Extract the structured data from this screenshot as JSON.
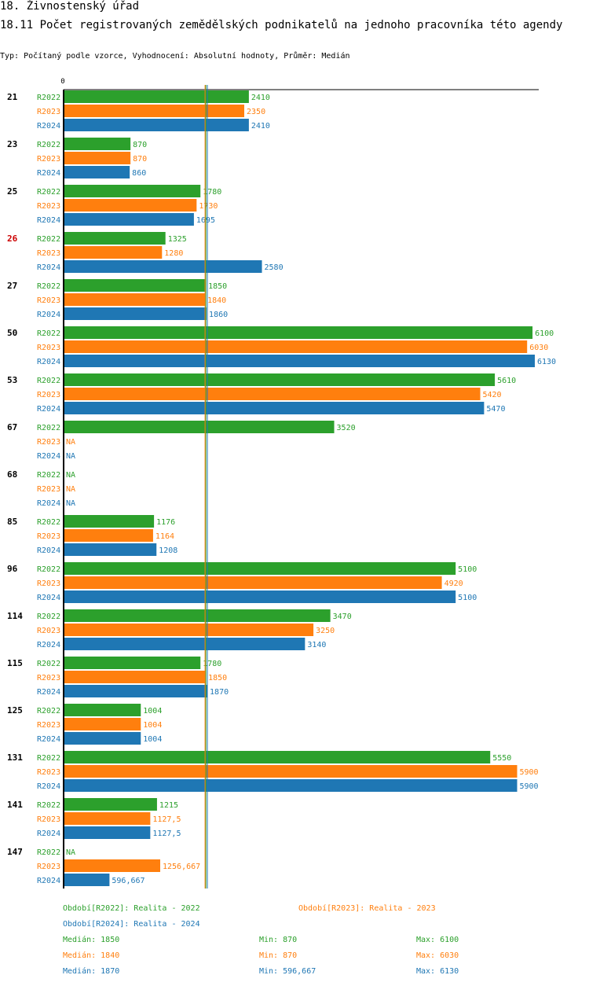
{
  "header": {
    "title": "18. Živnostenský úřad",
    "subtitle": "18.11 Počet  registrovaných zemědělských podnikatelů na jednoho pracovníka  této agendy",
    "typeline": "Typ: Počítaný podle vzorce, Vyhodnocení: Absolutní hodnoty, Průměr: Medián"
  },
  "colors": {
    "R2022": "#2ca02c",
    "R2023": "#ff7f0e",
    "R2024": "#1f77b4",
    "highlight": "#cc0000",
    "axis": "#000000"
  },
  "chart_data": {
    "type": "bar",
    "orientation": "horizontal",
    "axis_zero_label": "0",
    "xlim": [
      0,
      6130
    ],
    "highlight_category": "26",
    "categories": [
      "21",
      "23",
      "25",
      "26",
      "27",
      "50",
      "53",
      "67",
      "68",
      "85",
      "96",
      "114",
      "115",
      "125",
      "131",
      "141",
      "147"
    ],
    "series": [
      {
        "name": "R2022",
        "values": [
          2410,
          870,
          1780,
          1325,
          1850,
          6100,
          5610,
          3520,
          null,
          1176,
          5100,
          3470,
          1780,
          1004,
          5550,
          1215,
          null
        ],
        "labels": [
          "2410",
          "870",
          "1780",
          "1325",
          "1850",
          "6100",
          "5610",
          "3520",
          "NA",
          "1176",
          "5100",
          "3470",
          "1780",
          "1004",
          "5550",
          "1215",
          "NA"
        ]
      },
      {
        "name": "R2023",
        "values": [
          2350,
          870,
          1730,
          1280,
          1840,
          6030,
          5420,
          null,
          null,
          1164,
          4920,
          3250,
          1850,
          1004,
          5900,
          1127.5,
          1256.667
        ],
        "labels": [
          "2350",
          "870",
          "1730",
          "1280",
          "1840",
          "6030",
          "5420",
          "NA",
          "NA",
          "1164",
          "4920",
          "3250",
          "1850",
          "1004",
          "5900",
          "1127,5",
          "1256,667"
        ]
      },
      {
        "name": "R2024",
        "values": [
          2410,
          860,
          1695,
          2580,
          1860,
          6130,
          5470,
          null,
          null,
          1208,
          5100,
          3140,
          1870,
          1004,
          5900,
          1127.5,
          596.667
        ],
        "labels": [
          "2410",
          "860",
          "1695",
          "2580",
          "1860",
          "6130",
          "5470",
          "NA",
          "NA",
          "1208",
          "5100",
          "3140",
          "1870",
          "1004",
          "5900",
          "1127,5",
          "596,667"
        ]
      }
    ],
    "medians": {
      "R2022": 1850,
      "R2023": 1840,
      "R2024": 1870
    }
  },
  "legend": {
    "periods": [
      "Období[R2022]: Realita - 2022",
      "Období[R2023]: Realita - 2023",
      "Období[R2024]: Realita - 2024"
    ],
    "stats": [
      {
        "median": "Medián: 1850",
        "min": "Min: 870",
        "max": "Max: 6100"
      },
      {
        "median": "Medián: 1840",
        "min": "Min: 870",
        "max": "Max: 6030"
      },
      {
        "median": "Medián: 1870",
        "min": "Min: 596,667",
        "max": "Max: 6130"
      }
    ]
  }
}
